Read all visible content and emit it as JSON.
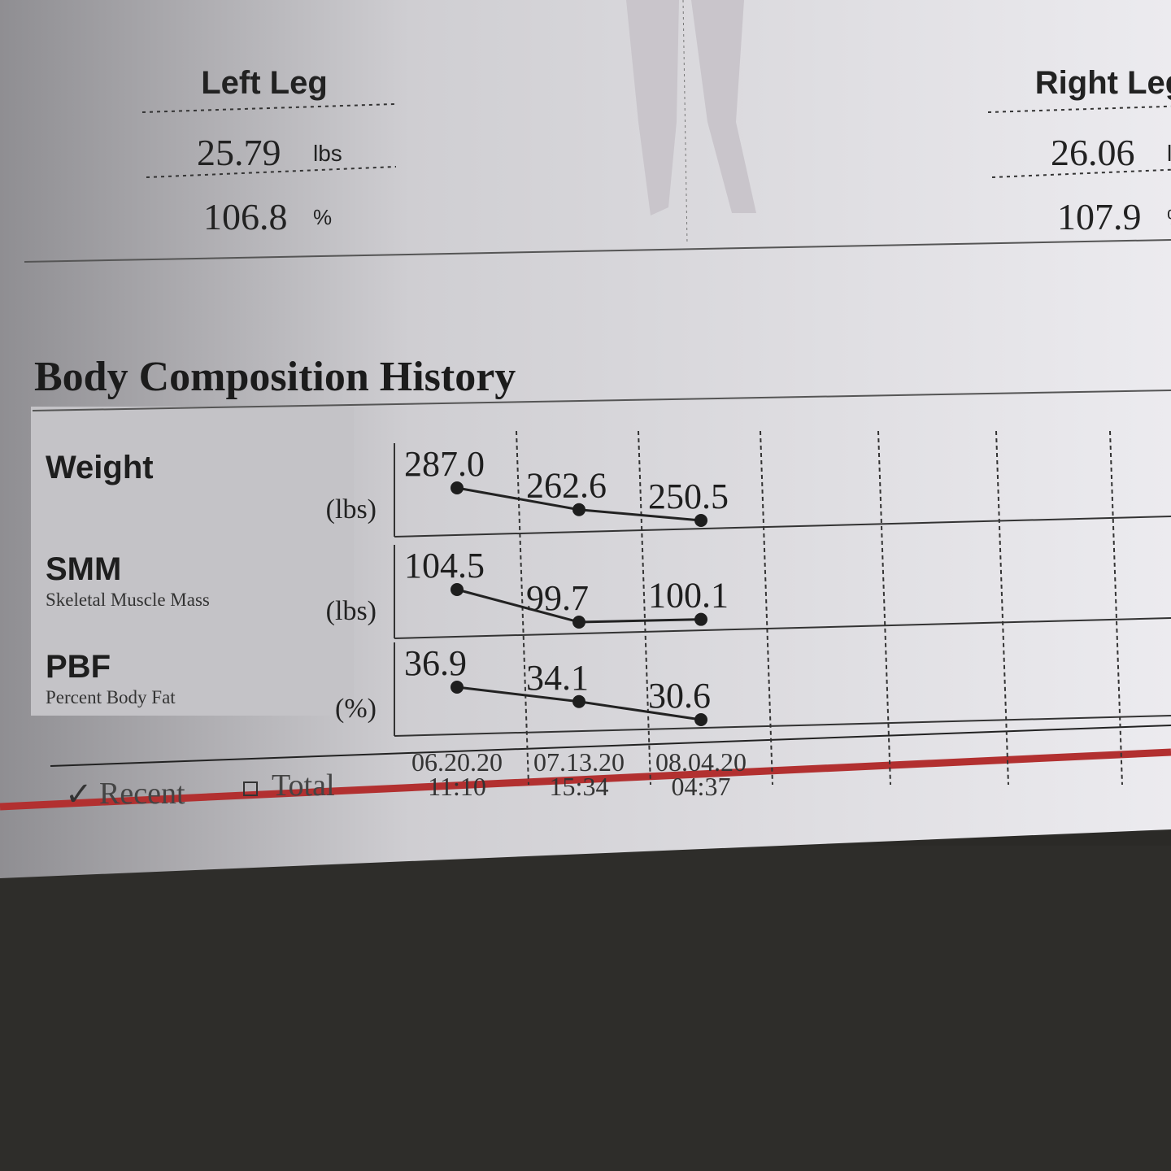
{
  "segments": [
    {
      "name": "Left Leg",
      "mass": "25.79",
      "mass_unit": "lbs",
      "percent": "106.8",
      "percent_unit": "%"
    },
    {
      "name": "Right Leg",
      "mass": "26.06",
      "mass_unit": "lbs",
      "percent": "107.9",
      "percent_unit": "%"
    }
  ],
  "history": {
    "title": "Body Composition History",
    "rows": [
      {
        "label": "Weight",
        "unit": "(lbs)",
        "values": [
          "287.0",
          "262.6",
          "250.5"
        ]
      },
      {
        "label": "SMM",
        "sublabel": "Skeletal Muscle Mass",
        "unit": "(lbs)",
        "values": [
          "104.5",
          "99.7",
          "100.1"
        ]
      },
      {
        "label": "PBF",
        "sublabel": "Percent Body Fat",
        "unit": "(%)",
        "values": [
          "36.9",
          "34.1",
          "30.6"
        ]
      }
    ],
    "dates": [
      {
        "date": "06.20.20",
        "time": "11:10"
      },
      {
        "date": "07.13.20",
        "time": "15:34"
      },
      {
        "date": "08.04.20",
        "time": "04:37"
      }
    ],
    "options": [
      "Recent",
      "Total"
    ]
  }
}
